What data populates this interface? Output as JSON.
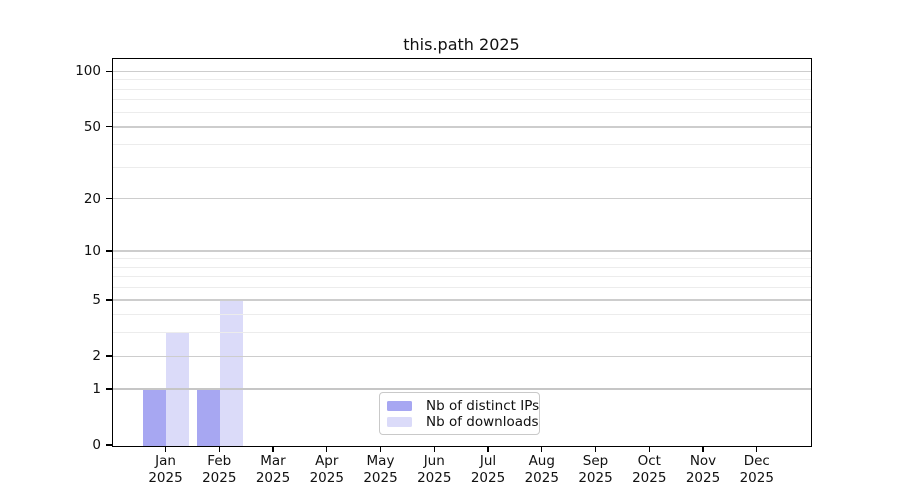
{
  "chart_data": {
    "type": "bar",
    "title": "this.path 2025",
    "categories": [
      "Jan",
      "Feb",
      "Mar",
      "Apr",
      "May",
      "Jun",
      "Jul",
      "Aug",
      "Sep",
      "Oct",
      "Nov",
      "Dec"
    ],
    "x_tick_year": "2025",
    "series": [
      {
        "name": "Nb of distinct IPs",
        "color": "#a7a7f2",
        "values": [
          1,
          1,
          0,
          0,
          0,
          0,
          0,
          0,
          0,
          0,
          0,
          0
        ]
      },
      {
        "name": "Nb of downloads",
        "color": "#dbdbf9",
        "values": [
          3,
          5,
          0,
          0,
          0,
          0,
          0,
          0,
          0,
          0,
          0,
          0
        ]
      }
    ],
    "y_axis": {
      "scale": "log-like log2(v+1)",
      "ticks": [
        0,
        1,
        2,
        5,
        10,
        20,
        50,
        100
      ],
      "minor_gridlines": [
        3,
        4,
        6,
        7,
        8,
        9,
        30,
        40,
        60,
        70,
        80,
        90
      ],
      "range": [
        0,
        117
      ]
    },
    "grid": "horizontal",
    "legend": {
      "position": "inside-bottom-center",
      "entries": [
        "Nb of distinct IPs",
        "Nb of downloads"
      ]
    },
    "colors": {
      "grid_major": "#cdcdcd",
      "grid_minor": "#ececec",
      "axis": "#000000",
      "background": "#ffffff",
      "legend_border": "#c9c9c9"
    }
  }
}
